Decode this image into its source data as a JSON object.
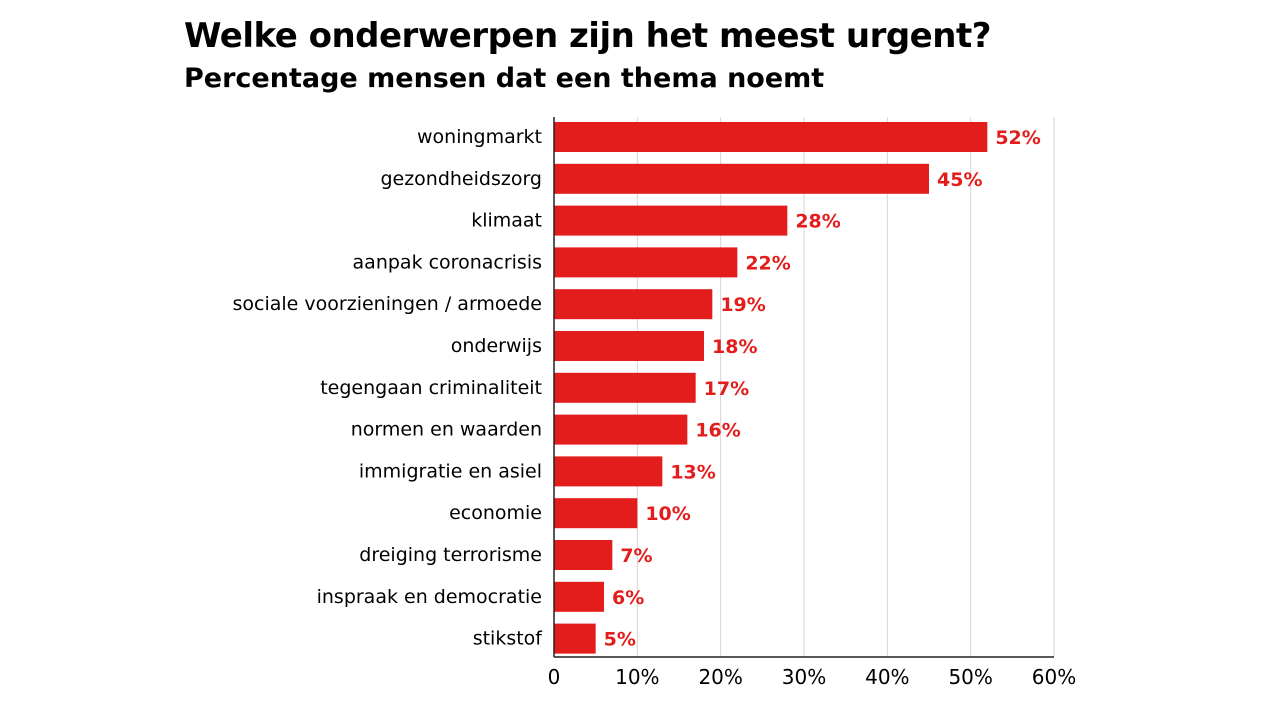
{
  "chart_data": {
    "type": "bar",
    "orientation": "horizontal",
    "title": "Welke onderwerpen zijn het meest urgent?",
    "subtitle": "Percentage mensen dat een thema noemt",
    "categories": [
      "woningmarkt",
      "gezondheidszorg",
      "klimaat",
      "aanpak coronacrisis",
      "sociale voorzieningen / armoede",
      "onderwijs",
      "tegengaan criminaliteit",
      "normen en waarden",
      "immigratie en asiel",
      "economie",
      "dreiging terrorisme",
      "inspraak en democratie",
      "stikstof"
    ],
    "values": [
      52,
      45,
      28,
      22,
      19,
      18,
      17,
      16,
      13,
      10,
      7,
      6,
      5
    ],
    "value_labels": [
      "52%",
      "45%",
      "28%",
      "22%",
      "19%",
      "18%",
      "17%",
      "16%",
      "13%",
      "10%",
      "7%",
      "6%",
      "5%"
    ],
    "xlim": [
      0,
      60
    ],
    "x_ticks": [
      0,
      10,
      20,
      30,
      40,
      50,
      60
    ],
    "x_tick_labels": [
      "0",
      "10%",
      "20%",
      "30%",
      "40%",
      "50%",
      "60%"
    ],
    "grid": "vertical",
    "legend": "none",
    "bar_color": "#e21d1c",
    "label_color": "#e21d1c",
    "grid_color": "#d4d4d4",
    "axis_color": "#222222"
  }
}
